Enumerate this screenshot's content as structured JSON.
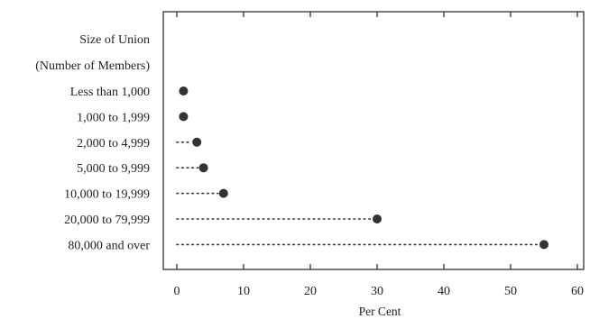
{
  "chart_data": {
    "type": "dot",
    "header_lines": [
      "Size of Union",
      "(Number of Members)"
    ],
    "categories": [
      "Less than 1,000",
      "1,000 to 1,999",
      "2,000 to 4,999",
      "5,000 to 9,999",
      "10,000 to 19,999",
      "20,000 to 79,999",
      "80,000 and over"
    ],
    "values": [
      1,
      1,
      3,
      4,
      7,
      30,
      55
    ],
    "xlabel": "Per Cent",
    "ylabel": "",
    "xlim": [
      0,
      60
    ],
    "xticks": [
      0,
      10,
      20,
      30,
      40,
      50,
      60
    ],
    "grid": false,
    "marker_color": "#333333"
  }
}
